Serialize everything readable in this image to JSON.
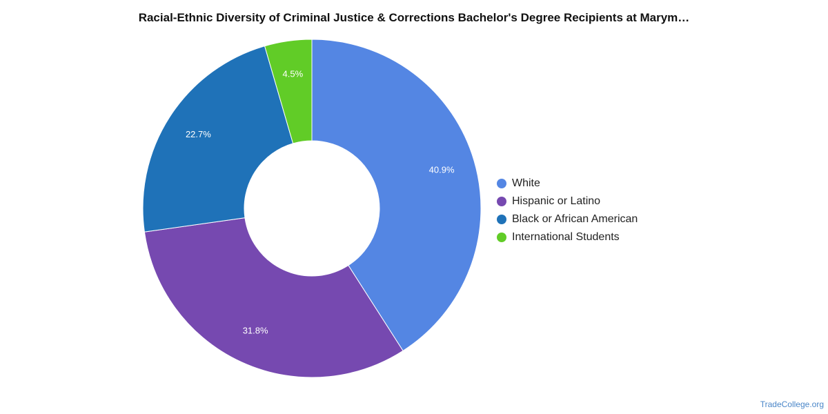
{
  "chart_data": {
    "type": "pie",
    "variant": "donut",
    "title": "Racial-Ethnic Diversity of Criminal Justice & Corrections Bachelor's Degree Recipients at Marym…",
    "legend_position": "right",
    "slices": [
      {
        "label": "White",
        "value": 40.9,
        "value_label": "40.9%",
        "color": "#5486e3"
      },
      {
        "label": "Hispanic or Latino",
        "value": 31.8,
        "value_label": "31.8%",
        "color": "#7649b0"
      },
      {
        "label": "Black or African American",
        "value": 22.7,
        "value_label": "22.7%",
        "color": "#1f72b8"
      },
      {
        "label": "International Students",
        "value": 4.5,
        "value_label": "4.5%",
        "color": "#61cc27"
      }
    ]
  },
  "footer": {
    "source": "TradeCollege.org"
  }
}
